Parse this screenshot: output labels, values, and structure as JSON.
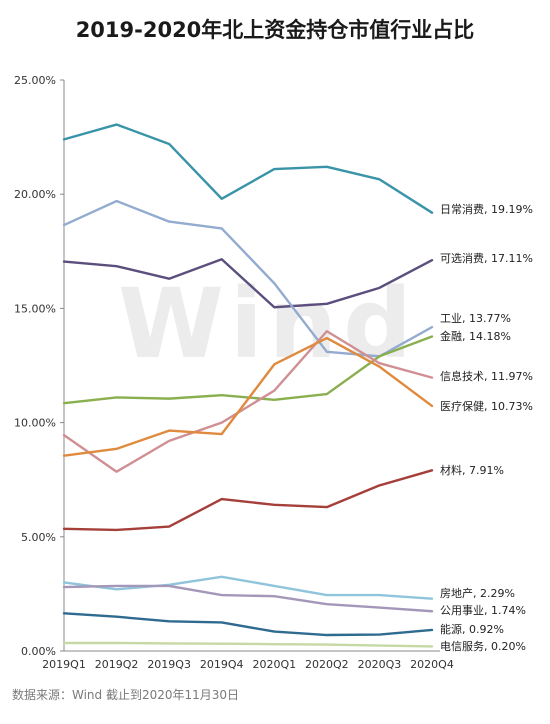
{
  "title": "2019-2020年北上资金持仓市值行业占比",
  "source": "数据来源：Wind    截止到2020年11月30日",
  "watermark": "Wind",
  "chart_data": {
    "type": "line",
    "title": "2019-2020年北上资金持仓市值行业占比",
    "categories": [
      "2019Q1",
      "2019Q2",
      "2019Q3",
      "2019Q4",
      "2020Q1",
      "2020Q2",
      "2020Q3",
      "2020Q4"
    ],
    "ylim": [
      0,
      25
    ],
    "yticks": [
      "0.00%",
      "5.00%",
      "10.00%",
      "15.00%",
      "20.00%",
      "25.00%"
    ],
    "grid": false,
    "series": [
      {
        "name": "日常消费",
        "end_label": "日常消费, 19.19%",
        "color": "#3a94a8",
        "values": [
          22.4,
          23.05,
          22.2,
          19.8,
          21.1,
          21.2,
          20.65,
          19.19
        ]
      },
      {
        "name": "可选消费",
        "end_label": "可选消费, 17.11%",
        "color": "#5c4e7d",
        "values": [
          17.05,
          16.85,
          16.3,
          17.15,
          15.05,
          15.2,
          15.9,
          17.11
        ]
      },
      {
        "name": "金融",
        "end_label": "金融, 14.18%",
        "color": "#92abcf",
        "values": [
          18.65,
          19.7,
          18.8,
          18.5,
          16.1,
          13.1,
          12.9,
          14.18
        ]
      },
      {
        "name": "工业",
        "end_label": "工业, 13.77%",
        "color": "#8aaf4e",
        "values": [
          10.85,
          11.1,
          11.05,
          11.2,
          11.0,
          11.25,
          12.9,
          13.77
        ]
      },
      {
        "name": "信息技术",
        "end_label": "信息技术, 11.97%",
        "color": "#cf8f93",
        "values": [
          9.45,
          7.85,
          9.2,
          10.0,
          11.4,
          14.0,
          12.6,
          11.97
        ]
      },
      {
        "name": "医疗保健",
        "end_label": "医疗保健, 10.73%",
        "color": "#e08a3e",
        "values": [
          8.55,
          8.85,
          9.65,
          9.5,
          12.55,
          13.7,
          12.45,
          10.73
        ]
      },
      {
        "name": "材料",
        "end_label": "材料, 7.91%",
        "color": "#a53f3a",
        "values": [
          5.35,
          5.3,
          5.45,
          6.65,
          6.4,
          6.3,
          7.25,
          7.91
        ]
      },
      {
        "name": "房地产",
        "end_label": "房地产, 2.29%",
        "color": "#8fc4dc",
        "values": [
          3.0,
          2.7,
          2.9,
          3.25,
          2.85,
          2.45,
          2.45,
          2.29
        ]
      },
      {
        "name": "公用事业",
        "end_label": "公用事业, 1.74%",
        "color": "#a597b9",
        "values": [
          2.8,
          2.85,
          2.85,
          2.45,
          2.4,
          2.05,
          1.9,
          1.74
        ]
      },
      {
        "name": "能源",
        "end_label": "能源, 0.92%",
        "color": "#2f6a90",
        "values": [
          1.65,
          1.5,
          1.3,
          1.25,
          0.85,
          0.7,
          0.72,
          0.92
        ]
      },
      {
        "name": "电信服务",
        "end_label": "电信服务, 0.20%",
        "color": "#c6d9a4",
        "values": [
          0.35,
          0.35,
          0.33,
          0.32,
          0.3,
          0.28,
          0.24,
          0.2
        ]
      }
    ]
  }
}
